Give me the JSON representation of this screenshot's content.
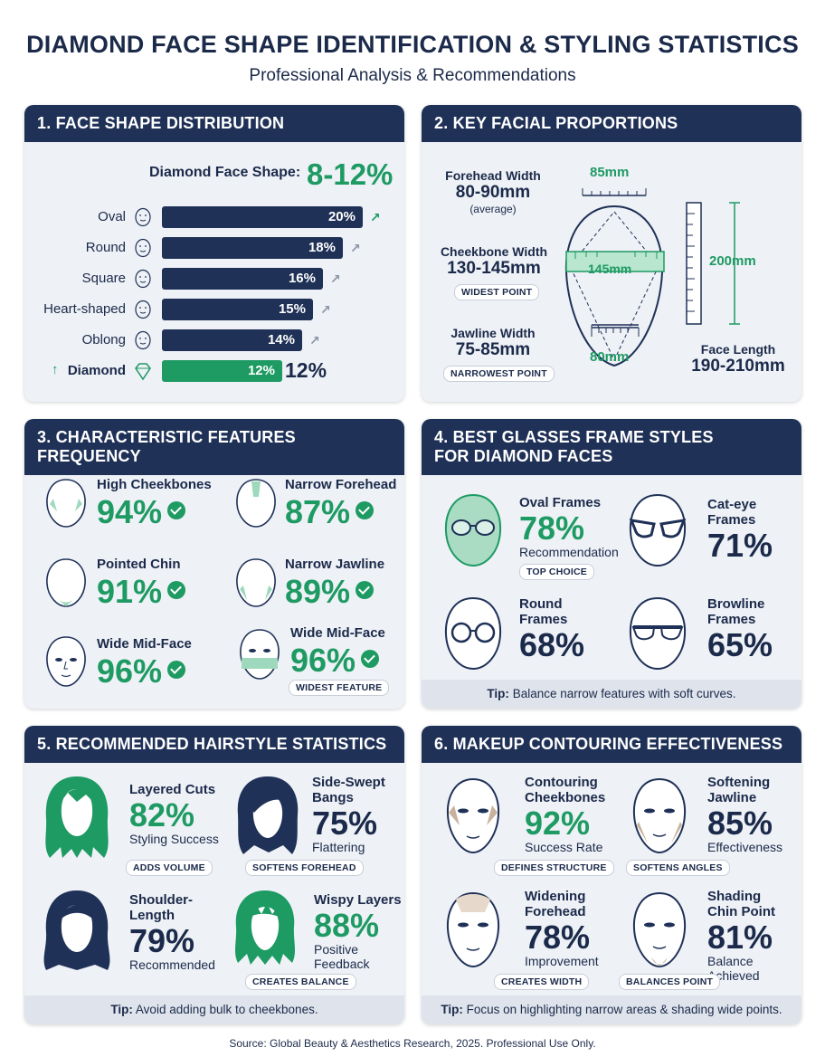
{
  "header": {
    "title": "DIAMOND FACE SHAPE IDENTIFICATION & STYLING STATISTICS",
    "subtitle": "Professional Analysis & Recommendations"
  },
  "panel1": {
    "title": "1. FACE SHAPE DISTRIBUTION",
    "headline_label": "Diamond Face Shape:",
    "headline_value": "8-12%",
    "rows": [
      {
        "label": "Oval",
        "value": "20%",
        "pct": 20
      },
      {
        "label": "Round",
        "value": "18%",
        "pct": 18
      },
      {
        "label": "Square",
        "value": "16%",
        "pct": 16
      },
      {
        "label": "Heart-shaped",
        "value": "15%",
        "pct": 15
      },
      {
        "label": "Oblong",
        "value": "14%",
        "pct": 14
      },
      {
        "label": "Diamond",
        "value": "12%",
        "pct": 12
      }
    ],
    "diamond_outside": "12%"
  },
  "panel2": {
    "title": "2. KEY FACIAL PROPORTIONS",
    "forehead_label": "Forehead Width",
    "forehead_value": "80-90mm",
    "forehead_note": "(average)",
    "cheek_label": "Cheekbone Width",
    "cheek_value": "130-145mm",
    "cheek_tag": "WIDEST POINT",
    "jaw_label": "Jawline Width",
    "jaw_value": "75-85mm",
    "jaw_tag": "NARROWEST POINT",
    "top_measure": "85mm",
    "mid_measure": "145mm",
    "bottom_measure": "80mm",
    "side_measure": "200mm",
    "length_label": "Face Length",
    "length_value": "190-210mm"
  },
  "panel3": {
    "title": "3. CHARACTERISTIC FEATURES FREQUENCY",
    "items": [
      {
        "label": "High Cheekbones",
        "value": "94%"
      },
      {
        "label": "Narrow Forehead",
        "value": "87%"
      },
      {
        "label": "Pointed Chin",
        "value": "91%"
      },
      {
        "label": "Narrow Jawline",
        "value": "89%"
      },
      {
        "label": "Wide Mid-Face",
        "value": "96%"
      },
      {
        "label": "Wide Mid-Face",
        "value": "96%"
      }
    ],
    "tag": "WIDEST FEATURE"
  },
  "panel4": {
    "title": "4. BEST GLASSES FRAME STYLES FOR DIAMOND FACES",
    "items": [
      {
        "label": "Oval Frames",
        "value": "78%",
        "sub": "Recommendation"
      },
      {
        "label": "Cat-eye Frames",
        "value": "71%"
      },
      {
        "label": "Round Frames",
        "value": "68%"
      },
      {
        "label": "Browline Frames",
        "value": "65%"
      }
    ],
    "tag": "TOP CHOICE",
    "tip_label": "Tip:",
    "tip": "Balance narrow features with soft curves."
  },
  "panel5": {
    "title": "5. RECOMMENDED HAIRSTYLE STATISTICS",
    "items": [
      {
        "label": "Layered Cuts",
        "value": "82%",
        "sub": "Styling Success",
        "tag": "ADDS VOLUME"
      },
      {
        "label": "Side-Swept Bangs",
        "value": "75%",
        "sub": "Flattering",
        "tag": "SOFTENS FOREHEAD"
      },
      {
        "label": "Shoulder-Length",
        "value": "79%",
        "sub": "Recommended"
      },
      {
        "label": "Wispy Layers",
        "value": "88%",
        "sub": "Positive Feedback",
        "tag": "CREATES BALANCE"
      }
    ],
    "tip_label": "Tip:",
    "tip": "Avoid adding bulk to cheekbones."
  },
  "panel6": {
    "title": "6. MAKEUP CONTOURING EFFECTIVENESS",
    "items": [
      {
        "label": "Contouring Cheekbones",
        "value": "92%",
        "sub": "Success Rate",
        "tag": "DEFINES STRUCTURE"
      },
      {
        "label": "Softening Jawline",
        "value": "85%",
        "sub": "Effectiveness",
        "tag": "SOFTENS ANGLES"
      },
      {
        "label": "Widening Forehead",
        "value": "78%",
        "sub": "Improvement",
        "tag": "CREATES WIDTH"
      },
      {
        "label": "Shading Chin Point",
        "value": "81%",
        "sub": "Balance Achieved",
        "tag": "BALANCES POINT"
      }
    ],
    "tip_label": "Tip:",
    "tip": "Focus on highlighting narrow areas & shading wide points."
  },
  "footer": "Source: Global Beauty & Aesthetics Research, 2025. Professional Use Only.",
  "colors": {
    "navy": "#1f3157",
    "green": "#1e9a63",
    "panel": "#eef1f6"
  }
}
